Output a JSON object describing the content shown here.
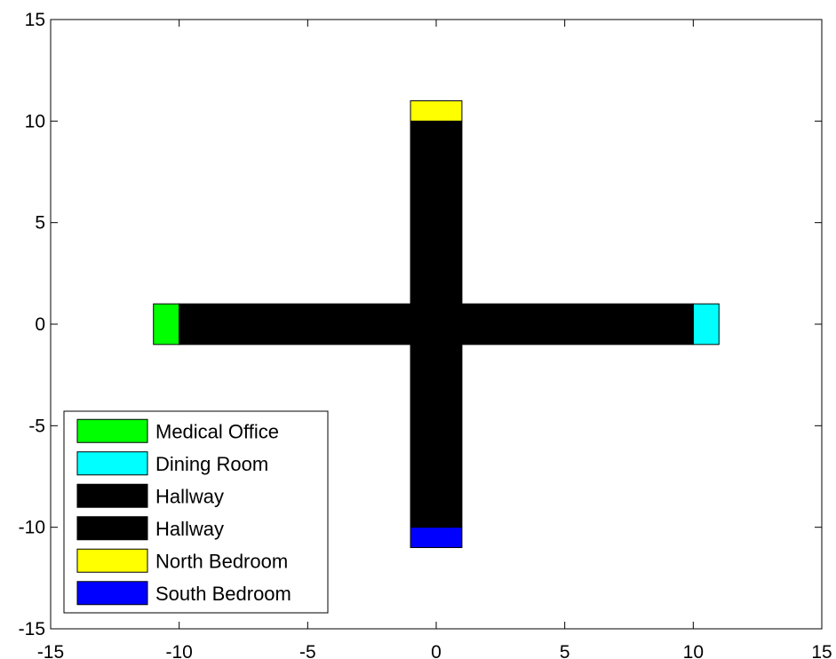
{
  "chart_data": {
    "type": "bar",
    "title": "",
    "xlabel": "",
    "ylabel": "",
    "xlim": [
      -15,
      15
    ],
    "ylim": [
      -15,
      15
    ],
    "xticks": [
      -15,
      -10,
      -5,
      0,
      5,
      10,
      15
    ],
    "yticks": [
      -15,
      -10,
      -5,
      0,
      5,
      10,
      15
    ],
    "grid": false,
    "legend_position": "bottom-left",
    "series": [
      {
        "name": "Medical Office",
        "color": "#00ff00",
        "x": [
          -11,
          -10
        ],
        "y": [
          -1,
          1
        ]
      },
      {
        "name": "Dining Room",
        "color": "#00ffff",
        "x": [
          10,
          11
        ],
        "y": [
          -1,
          1
        ]
      },
      {
        "name": "Hallway",
        "color": "#000000",
        "x": [
          -10,
          10
        ],
        "y": [
          -1,
          1
        ]
      },
      {
        "name": "Hallway",
        "color": "#000000",
        "x": [
          -1,
          1
        ],
        "y": [
          -10,
          10
        ]
      },
      {
        "name": "North Bedroom",
        "color": "#ffff00",
        "x": [
          -1,
          1
        ],
        "y": [
          10,
          11
        ]
      },
      {
        "name": "South Bedroom",
        "color": "#0000ff",
        "x": [
          -1,
          1
        ],
        "y": [
          -11,
          -10
        ]
      }
    ]
  }
}
